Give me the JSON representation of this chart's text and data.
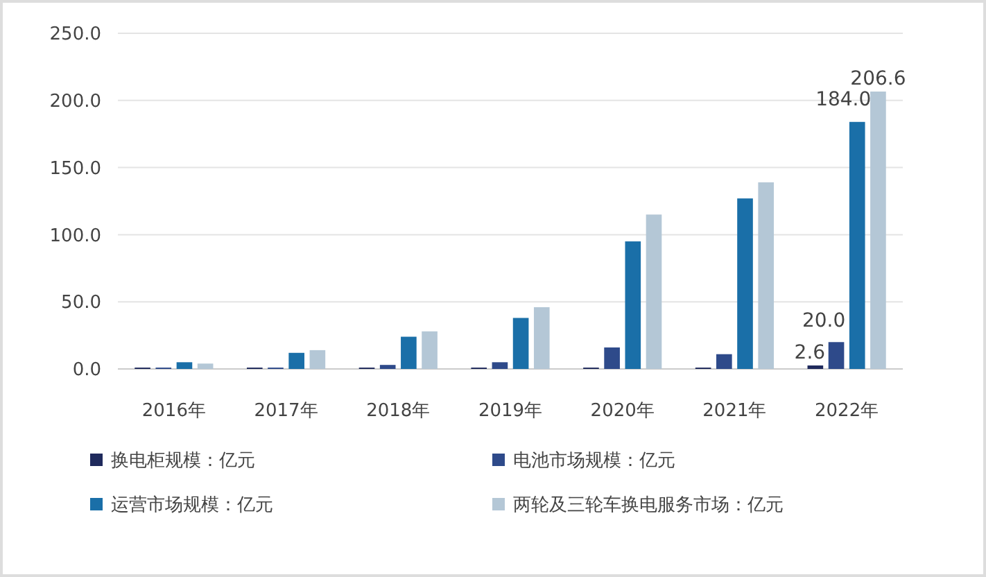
{
  "chart_data": {
    "type": "bar",
    "categories": [
      "2016年",
      "2017年",
      "2018年",
      "2019年",
      "2020年",
      "2021年",
      "2022年"
    ],
    "series": [
      {
        "name": "换电柜规模：亿元",
        "color": "#1f2a5c",
        "values": [
          1,
          1,
          1,
          1,
          1,
          1,
          2.6
        ],
        "value_labels": [
          null,
          null,
          null,
          null,
          null,
          null,
          "2.6"
        ]
      },
      {
        "name": "电池市场规模：亿元",
        "color": "#2e4a8a",
        "values": [
          1,
          1,
          3,
          5,
          16,
          11,
          20.0
        ],
        "value_labels": [
          null,
          null,
          null,
          null,
          null,
          null,
          "20.0"
        ]
      },
      {
        "name": "运营市场规模：亿元",
        "color": "#1a6fa8",
        "values": [
          5,
          12,
          24,
          38,
          95,
          127,
          184.0
        ],
        "value_labels": [
          null,
          null,
          null,
          null,
          null,
          null,
          "184.0"
        ]
      },
      {
        "name": "两轮及三轮车换电服务市场：亿元",
        "color": "#b4c7d6",
        "values": [
          4,
          14,
          28,
          46,
          115,
          139,
          206.6
        ],
        "value_labels": [
          null,
          null,
          null,
          null,
          null,
          null,
          "206.6"
        ]
      }
    ],
    "ylim": [
      0,
      250
    ],
    "yticks": [
      {
        "value": 0,
        "label": "0.0"
      },
      {
        "value": 50,
        "label": "50.0"
      },
      {
        "value": 100,
        "label": "100.0"
      },
      {
        "value": 150,
        "label": "150.0"
      },
      {
        "value": 200,
        "label": "200.0"
      },
      {
        "value": 250,
        "label": "250.0"
      }
    ],
    "grid": "y",
    "legend": "bottom"
  }
}
